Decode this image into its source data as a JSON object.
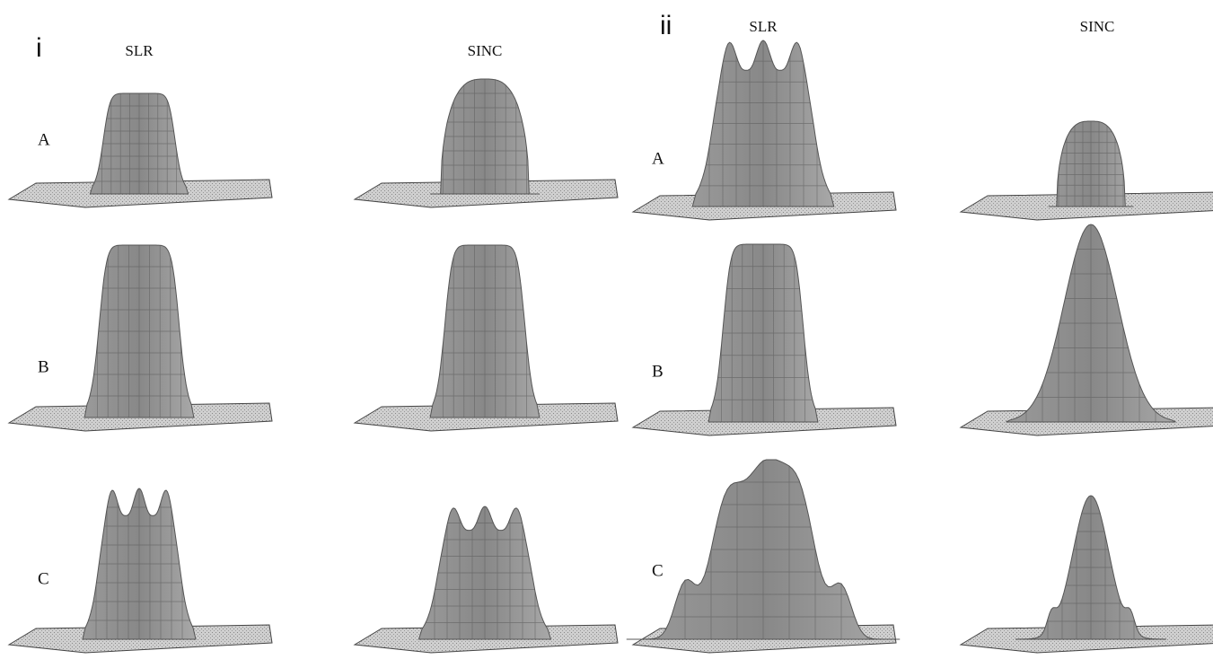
{
  "panels": [
    {
      "label": "i",
      "columns": [
        "SLR",
        "SINC"
      ],
      "rows": [
        "A",
        "B",
        "C"
      ]
    },
    {
      "label": "ii",
      "columns": [
        "SLR",
        "SINC"
      ],
      "rows": [
        "A",
        "B",
        "C"
      ]
    }
  ]
}
